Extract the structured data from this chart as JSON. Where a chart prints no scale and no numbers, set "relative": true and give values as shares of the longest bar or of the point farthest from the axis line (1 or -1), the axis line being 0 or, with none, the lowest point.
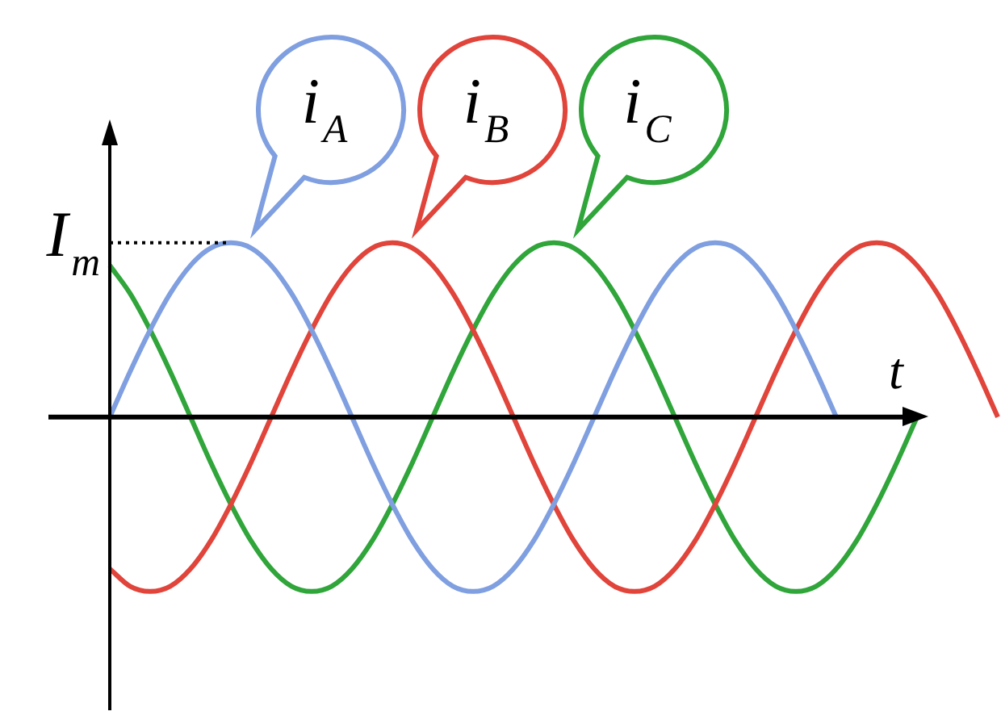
{
  "chart_data": {
    "type": "line",
    "xlabel": "t",
    "relative": true,
    "marker": "none",
    "categories": [
      null,
      null,
      null,
      null,
      null,
      null,
      null,
      null,
      null,
      null,
      null,
      null,
      null,
      null,
      null,
      null,
      null,
      null,
      null,
      null,
      null,
      null,
      null,
      null,
      null,
      null,
      null,
      null,
      null,
      null,
      null,
      null,
      null,
      null,
      null,
      null,
      null,
      null,
      null,
      null,
      null,
      null,
      null,
      null,
      null
    ],
    "series": [
      {
        "name": "i$_{A}$",
        "color": "#7f9fe0",
        "values": [
          0,
          0.26,
          0.5,
          0.71,
          0.87,
          0.97,
          1,
          0.97,
          0.87,
          0.71,
          0.5,
          0.26,
          0,
          -0.26,
          -0.5,
          -0.71,
          -0.87,
          -0.97,
          -1,
          -0.97,
          -0.87,
          -0.71,
          -0.5,
          -0.26,
          0,
          0.26,
          0.5,
          0.71,
          0.87,
          0.97,
          1,
          0.97,
          0.87,
          0.71,
          0.5,
          0.26,
          0,
          null,
          null,
          null,
          null,
          null,
          null,
          null,
          null
        ]
      },
      {
        "name": "i$_{B}$",
        "color": "#e0443a",
        "values": [
          -0.87,
          -0.97,
          -1,
          -0.97,
          -0.87,
          -0.71,
          -0.5,
          -0.26,
          0,
          0.26,
          0.5,
          0.71,
          0.87,
          0.97,
          1,
          0.97,
          0.87,
          0.71,
          0.5,
          0.26,
          0,
          -0.26,
          -0.5,
          -0.71,
          -0.87,
          -0.97,
          -1,
          -0.97,
          -0.87,
          -0.71,
          -0.5,
          -0.26,
          0,
          0.26,
          0.5,
          0.71,
          0.87,
          0.97,
          1,
          0.97,
          0.87,
          0.71,
          0.5,
          0.26,
          0
        ]
      },
      {
        "name": "i$_{C}$",
        "color": "#2fa53a",
        "values": [
          0.87,
          0.71,
          0.5,
          0.26,
          0,
          -0.26,
          -0.5,
          -0.71,
          -0.87,
          -0.97,
          -1,
          -0.97,
          -0.87,
          -0.71,
          -0.5,
          -0.26,
          0,
          0.26,
          0.5,
          0.71,
          0.87,
          0.97,
          1,
          0.97,
          0.87,
          0.71,
          0.5,
          0.26,
          0,
          -0.26,
          -0.5,
          -0.71,
          -0.87,
          -0.97,
          -1,
          -0.97,
          -0.87,
          -0.71,
          -0.5,
          -0.26,
          0,
          null,
          null,
          null,
          null
        ]
      }
    ],
    "ref_lines": [
      {
        "axis": "y",
        "value": 1,
        "label": "I$_{m}$",
        "line_style": "dotted",
        "color": "#000000"
      }
    ]
  }
}
